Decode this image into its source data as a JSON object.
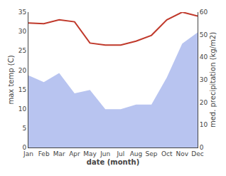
{
  "chart_data": {
    "type": "line",
    "xlabel": "date (month)",
    "ylabel": "max temp (C)",
    "y2label": "med. precipitation (kg/m2)",
    "categories": [
      "Jan",
      "Feb",
      "Mar",
      "Apr",
      "May",
      "Jun",
      "Jul",
      "Aug",
      "Sep",
      "Oct",
      "Nov",
      "Dec"
    ],
    "series": [
      {
        "type": "area",
        "color": "#b8c4f0",
        "axis": "y2",
        "values": [
          32,
          29,
          33,
          24,
          25.5,
          17,
          17,
          19,
          19,
          31,
          46,
          51
        ]
      },
      {
        "type": "line",
        "color": "#c0392b",
        "values": [
          32.2,
          32.0,
          33.0,
          32.5,
          27.0,
          26.5,
          26.5,
          27.5,
          29.0,
          33.0,
          35.0,
          34.0
        ]
      }
    ],
    "ylim": [
      0,
      35
    ],
    "yticks": [
      0,
      5,
      10,
      15,
      20,
      25,
      30,
      35
    ],
    "y2lim": [
      0,
      60
    ],
    "y2ticks": [
      0,
      10,
      20,
      30,
      40,
      50,
      60
    ],
    "grid": false
  }
}
